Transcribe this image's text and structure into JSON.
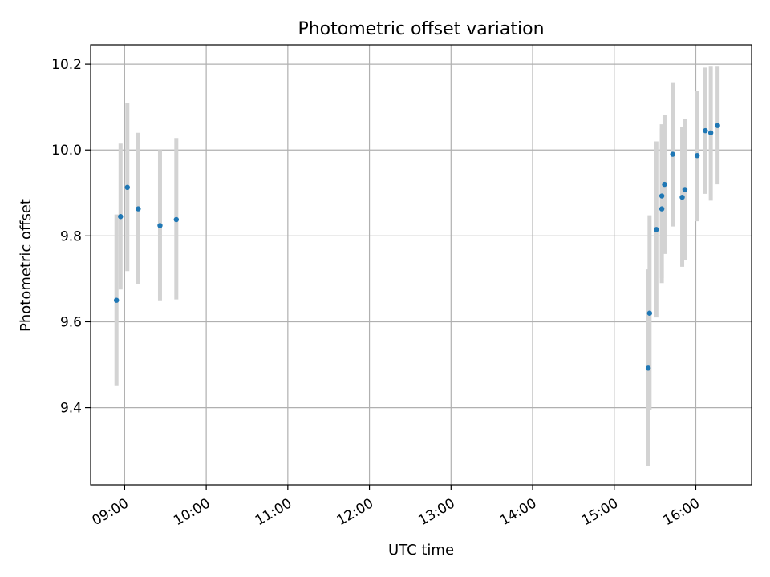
{
  "chart_data": {
    "type": "scatter",
    "title": "Photometric offset variation",
    "xlabel": "UTC time",
    "ylabel": "Photometric offset",
    "x_ticks": [
      "09:00",
      "10:00",
      "11:00",
      "12:00",
      "13:00",
      "14:00",
      "15:00",
      "16:00"
    ],
    "y_ticks": [
      "9.4",
      "9.6",
      "9.8",
      "10.0",
      "10.2"
    ],
    "xlim": [
      "08:35",
      "16:41"
    ],
    "ylim": [
      9.22,
      10.245
    ],
    "grid": true,
    "colors": {
      "point": "#1f77b4",
      "errorbar": "#d3d3d3",
      "grid": "#b0b0b0"
    },
    "points": [
      {
        "x": "08:54",
        "y": 9.65,
        "low": 9.45,
        "high": 9.85
      },
      {
        "x": "08:57",
        "y": 9.845,
        "low": 9.675,
        "high": 10.015
      },
      {
        "x": "09:02",
        "y": 9.913,
        "low": 9.718,
        "high": 10.11
      },
      {
        "x": "09:10",
        "y": 9.863,
        "low": 9.687,
        "high": 10.04
      },
      {
        "x": "09:26",
        "y": 9.824,
        "low": 9.65,
        "high": 10.0
      },
      {
        "x": "09:38",
        "y": 9.838,
        "low": 9.652,
        "high": 10.028
      },
      {
        "x": "15:25",
        "y": 9.492,
        "low": 9.263,
        "high": 9.722
      },
      {
        "x": "15:26",
        "y": 9.62,
        "low": 9.395,
        "high": 9.848
      },
      {
        "x": "15:31",
        "y": 9.815,
        "low": 9.61,
        "high": 10.02
      },
      {
        "x": "15:35",
        "y": 9.863,
        "low": 9.69,
        "high": 10.05
      },
      {
        "x": "15:35",
        "y": 9.893,
        "low": 9.702,
        "high": 10.06
      },
      {
        "x": "15:37",
        "y": 9.92,
        "low": 9.758,
        "high": 10.082
      },
      {
        "x": "15:43",
        "y": 9.99,
        "low": 9.822,
        "high": 10.158
      },
      {
        "x": "15:50",
        "y": 9.89,
        "low": 9.728,
        "high": 10.054
      },
      {
        "x": "15:52",
        "y": 9.908,
        "low": 9.743,
        "high": 10.073
      },
      {
        "x": "16:01",
        "y": 9.987,
        "low": 9.834,
        "high": 10.137
      },
      {
        "x": "16:07",
        "y": 10.045,
        "low": 9.898,
        "high": 10.192
      },
      {
        "x": "16:11",
        "y": 10.04,
        "low": 9.882,
        "high": 10.196
      },
      {
        "x": "16:16",
        "y": 10.057,
        "low": 9.92,
        "high": 10.196
      }
    ]
  }
}
